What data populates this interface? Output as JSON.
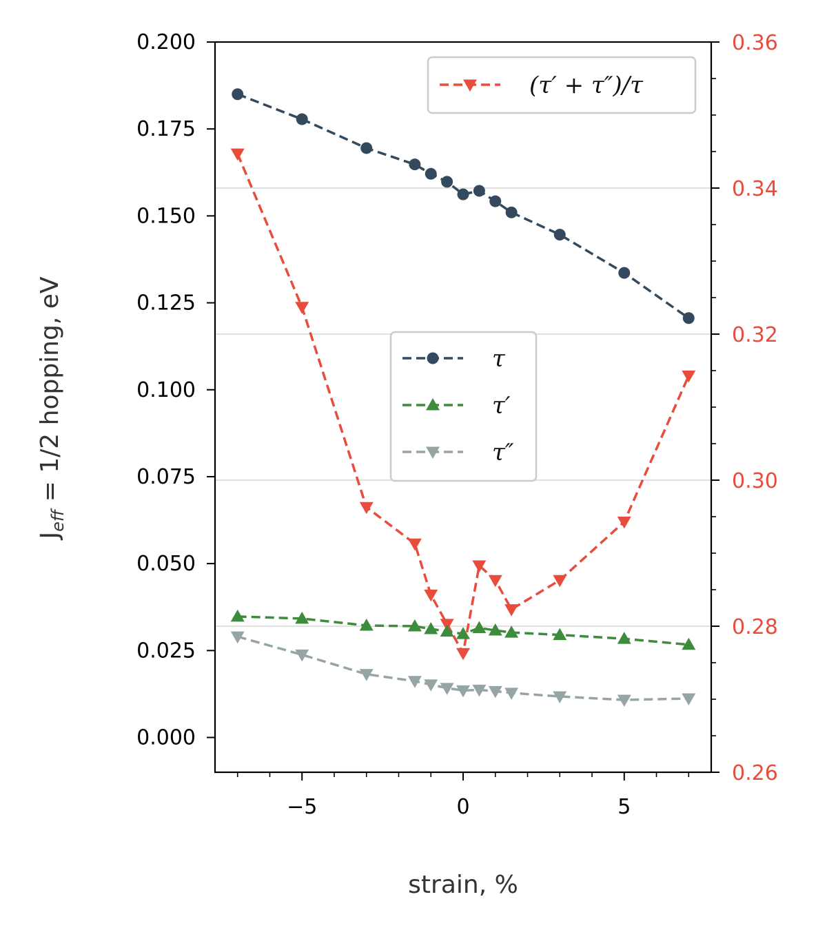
{
  "chart_data": {
    "type": "line",
    "xlabel": "strain, %",
    "ylabel": {
      "main": "J",
      "sub": "eff",
      "rest": " = 1/2 hopping, eV"
    },
    "xlim": [
      -7.7,
      7.7
    ],
    "ylim_left": [
      -0.01,
      0.2
    ],
    "ylim_right": [
      0.26,
      0.36
    ],
    "xticks": [
      {
        "v": -5,
        "label": "−5"
      },
      {
        "v": 0,
        "label": "0"
      },
      {
        "v": 5,
        "label": "5"
      }
    ],
    "yticks_left": [
      {
        "v": 0.0,
        "label": "0.000"
      },
      {
        "v": 0.025,
        "label": "0.025"
      },
      {
        "v": 0.05,
        "label": "0.050"
      },
      {
        "v": 0.075,
        "label": "0.075"
      },
      {
        "v": 0.1,
        "label": "0.100"
      },
      {
        "v": 0.125,
        "label": "0.125"
      },
      {
        "v": 0.15,
        "label": "0.150"
      },
      {
        "v": 0.175,
        "label": "0.175"
      },
      {
        "v": 0.2,
        "label": "0.200"
      }
    ],
    "yticks_right": [
      {
        "v": 0.26,
        "label": "0.26"
      },
      {
        "v": 0.28,
        "label": "0.28"
      },
      {
        "v": 0.3,
        "label": "0.30"
      },
      {
        "v": 0.32,
        "label": "0.32"
      },
      {
        "v": 0.34,
        "label": "0.34"
      },
      {
        "v": 0.36,
        "label": "0.36"
      }
    ],
    "grid": "right-axis major ticks",
    "x": [
      -7,
      -5,
      -3,
      -1.5,
      -1,
      -0.5,
      0,
      0.5,
      1,
      1.5,
      3,
      5,
      7
    ],
    "series": [
      {
        "name": "τ",
        "axis": "left",
        "marker": "circle",
        "color": "#34495e",
        "values": [
          0.185,
          0.1778,
          0.1695,
          0.1648,
          0.1621,
          0.1598,
          0.1562,
          0.1572,
          0.1542,
          0.151,
          0.1446,
          0.1336,
          0.1206
        ]
      },
      {
        "name": "τ′",
        "axis": "left",
        "marker": "triangle-up",
        "color": "#3d8b3d",
        "values": [
          0.0348,
          0.0342,
          0.0322,
          0.032,
          0.0312,
          0.0305,
          0.0298,
          0.0315,
          0.0308,
          0.0302,
          0.0295,
          0.0284,
          0.0267
        ]
      },
      {
        "name": "τ″",
        "axis": "left",
        "marker": "triangle-down",
        "color": "#95a5a6",
        "values": [
          0.029,
          0.0238,
          0.0182,
          0.0162,
          0.0152,
          0.0142,
          0.0135,
          0.0137,
          0.0133,
          0.0128,
          0.0118,
          0.0108,
          0.0112
        ]
      },
      {
        "name": "(τ′ + τ″)/τ",
        "axis": "right",
        "marker": "triangle-down",
        "color": "#e74c3c",
        "values": [
          0.3447,
          0.3237,
          0.2963,
          0.2913,
          0.2843,
          0.2803,
          0.2763,
          0.2883,
          0.2863,
          0.2823,
          0.2863,
          0.2943,
          0.3143
        ]
      }
    ],
    "legends": [
      {
        "placement": "top-right",
        "entries": [
          "(τ′ + τ″)/τ"
        ]
      },
      {
        "placement": "center",
        "entries": [
          "τ",
          "τ′",
          "τ″"
        ]
      }
    ]
  }
}
